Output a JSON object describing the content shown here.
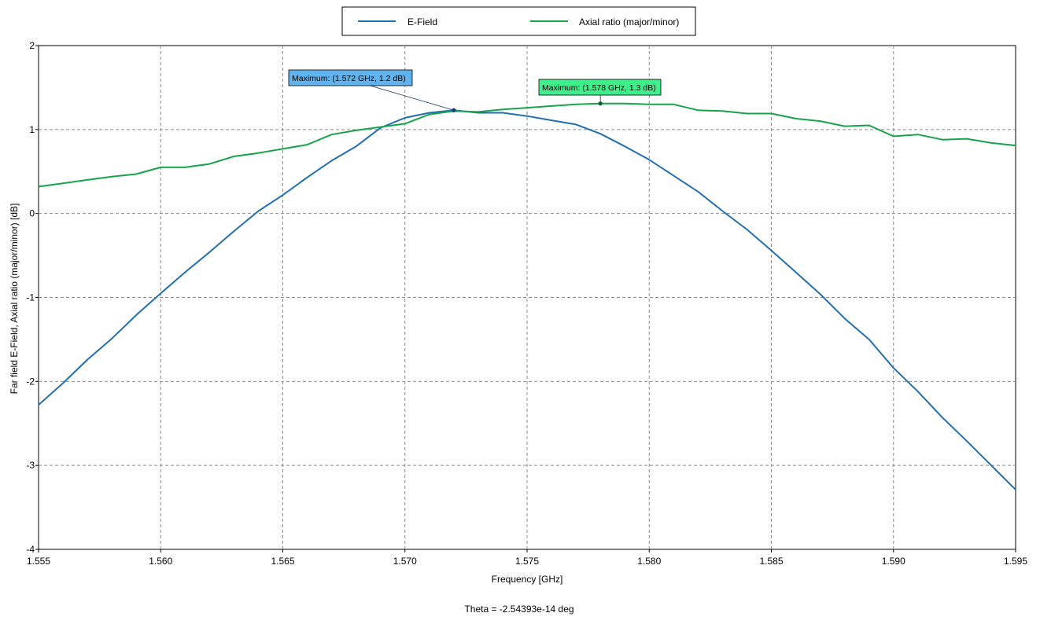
{
  "chart_data": {
    "type": "line",
    "xlabel": "Frequency [GHz]",
    "ylabel": "Far field E-Field,  Axial ratio (major/minor) [dB]",
    "footer": "Theta = -2.54393e-14 deg",
    "xlim": [
      1.555,
      1.595
    ],
    "ylim": [
      -4,
      2
    ],
    "x_ticks": [
      "1.555",
      "1.560",
      "1.565",
      "1.570",
      "1.575",
      "1.580",
      "1.585",
      "1.590",
      "1.595"
    ],
    "y_ticks": [
      "2",
      "1",
      "0",
      "-1",
      "-2",
      "-3",
      "-4"
    ],
    "grid": true,
    "legend_position": "top-center",
    "series": [
      {
        "name": "E-Field",
        "color": "#1f6fb4",
        "x": [
          1.555,
          1.556,
          1.557,
          1.558,
          1.559,
          1.56,
          1.561,
          1.562,
          1.563,
          1.564,
          1.565,
          1.566,
          1.567,
          1.568,
          1.569,
          1.57,
          1.571,
          1.572,
          1.573,
          1.574,
          1.575,
          1.576,
          1.577,
          1.578,
          1.579,
          1.58,
          1.581,
          1.582,
          1.583,
          1.584,
          1.585,
          1.586,
          1.587,
          1.588,
          1.589,
          1.59,
          1.591,
          1.592,
          1.593,
          1.594,
          1.595
        ],
        "y": [
          -2.28,
          -2.02,
          -1.74,
          -1.49,
          -1.21,
          -0.95,
          -0.7,
          -0.46,
          -0.21,
          0.03,
          0.22,
          0.43,
          0.63,
          0.8,
          1.02,
          1.14,
          1.2,
          1.23,
          1.2,
          1.2,
          1.16,
          1.11,
          1.06,
          0.95,
          0.8,
          0.64,
          0.45,
          0.26,
          0.03,
          -0.19,
          -0.44,
          -0.7,
          -0.96,
          -1.25,
          -1.5,
          -1.84,
          -2.12,
          -2.43,
          -2.71,
          -3.0,
          -3.29
        ]
      },
      {
        "name": "Axial ratio (major/minor)",
        "color": "#17a34a",
        "x": [
          1.555,
          1.556,
          1.557,
          1.558,
          1.559,
          1.56,
          1.561,
          1.562,
          1.563,
          1.564,
          1.565,
          1.566,
          1.567,
          1.568,
          1.569,
          1.57,
          1.571,
          1.572,
          1.573,
          1.574,
          1.575,
          1.576,
          1.577,
          1.578,
          1.579,
          1.58,
          1.581,
          1.582,
          1.583,
          1.584,
          1.585,
          1.586,
          1.587,
          1.588,
          1.589,
          1.59,
          1.591,
          1.592,
          1.593,
          1.594,
          1.595
        ],
        "y": [
          0.32,
          0.36,
          0.4,
          0.44,
          0.47,
          0.55,
          0.55,
          0.59,
          0.68,
          0.72,
          0.77,
          0.82,
          0.94,
          0.99,
          1.03,
          1.07,
          1.18,
          1.22,
          1.21,
          1.24,
          1.26,
          1.28,
          1.3,
          1.31,
          1.31,
          1.3,
          1.3,
          1.23,
          1.22,
          1.19,
          1.19,
          1.13,
          1.1,
          1.04,
          1.05,
          0.92,
          0.94,
          0.88,
          0.89,
          0.84,
          0.81
        ]
      }
    ],
    "annotations": [
      {
        "text": "Maximum: (1.572 GHz, 1.2 dB)",
        "x": 1.572,
        "y": 1.23,
        "fill": "#5fb3ef",
        "series": "E-Field"
      },
      {
        "text": "Maximum: (1.578 GHz, 1.3 dB)",
        "x": 1.578,
        "y": 1.31,
        "fill": "#3ef08a",
        "series": "Axial ratio (major/minor)"
      }
    ]
  }
}
